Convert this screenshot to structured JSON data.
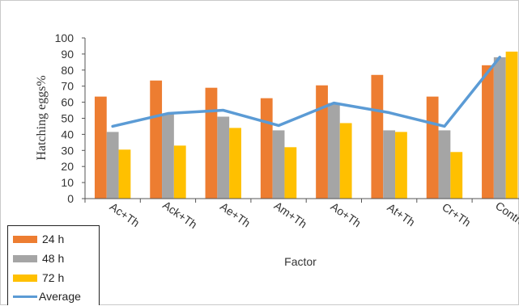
{
  "chart_data": {
    "type": "bar",
    "title": "",
    "xlabel": "Factor",
    "ylabel": "Hatching eggs%",
    "ylim": [
      0,
      100
    ],
    "yticks": [
      0,
      10,
      20,
      30,
      40,
      50,
      60,
      70,
      80,
      90,
      100
    ],
    "categories": [
      "Ac+Th",
      "Ack+Th",
      "Ae+Th",
      "Am+Th",
      "Ao+Th",
      "At+Th",
      "Cr+Th",
      "Control"
    ],
    "series": [
      {
        "name": "24 h",
        "color": "#ed7d31",
        "values": [
          63.5,
          73.5,
          69,
          62.5,
          70.5,
          77,
          63.5,
          83
        ]
      },
      {
        "name": "48 h",
        "color": "#a5a5a5",
        "values": [
          41.5,
          53,
          51,
          42.5,
          59.5,
          42.5,
          42.5,
          88
        ]
      },
      {
        "name": "72 h",
        "color": "#ffc000",
        "values": [
          30.5,
          33,
          44,
          32,
          47,
          41.5,
          29,
          91.5
        ]
      }
    ],
    "line_series": {
      "name": "Average",
      "color": "#5b9bd5",
      "values": [
        45,
        53,
        55,
        45.5,
        59.5,
        53.5,
        45,
        88
      ]
    },
    "grid": false,
    "legend": "bottom-left"
  }
}
